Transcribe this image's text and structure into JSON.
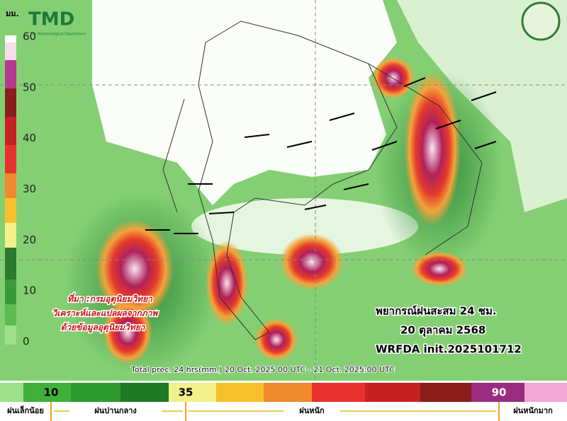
{
  "header": {
    "unit": "มม.",
    "logo": "TMD",
    "logo_sub": "The Meteorological Department"
  },
  "scale_labels": [
    60,
    50,
    40,
    30,
    20,
    10,
    0
  ],
  "source": [
    "ที่มา :กรมอุตุนิยมวิทยา",
    "วิเคราะห์และแปลผลจากภาพ",
    "ด้วยข้อมูลอุตุนิยมวิทยา"
  ],
  "forecast": {
    "title": "พยากรณ์ฝนสะสม 24 ชม.",
    "date": "20 ตุลาคม 2568",
    "model": "WRFDA init.2025101712"
  },
  "caption": "Total prec. 24 hrs(mm.) 20 Oct. 2025 00 UTC - 21 Oct. 2025:00 UTC",
  "color_bar": {
    "labels": [
      10,
      35,
      90
    ]
  },
  "categories": [
    "ฝนเล็กน้อย",
    "ฝนปานกลาง",
    "ฝนหนัก",
    "ฝนหนักมาก"
  ]
}
